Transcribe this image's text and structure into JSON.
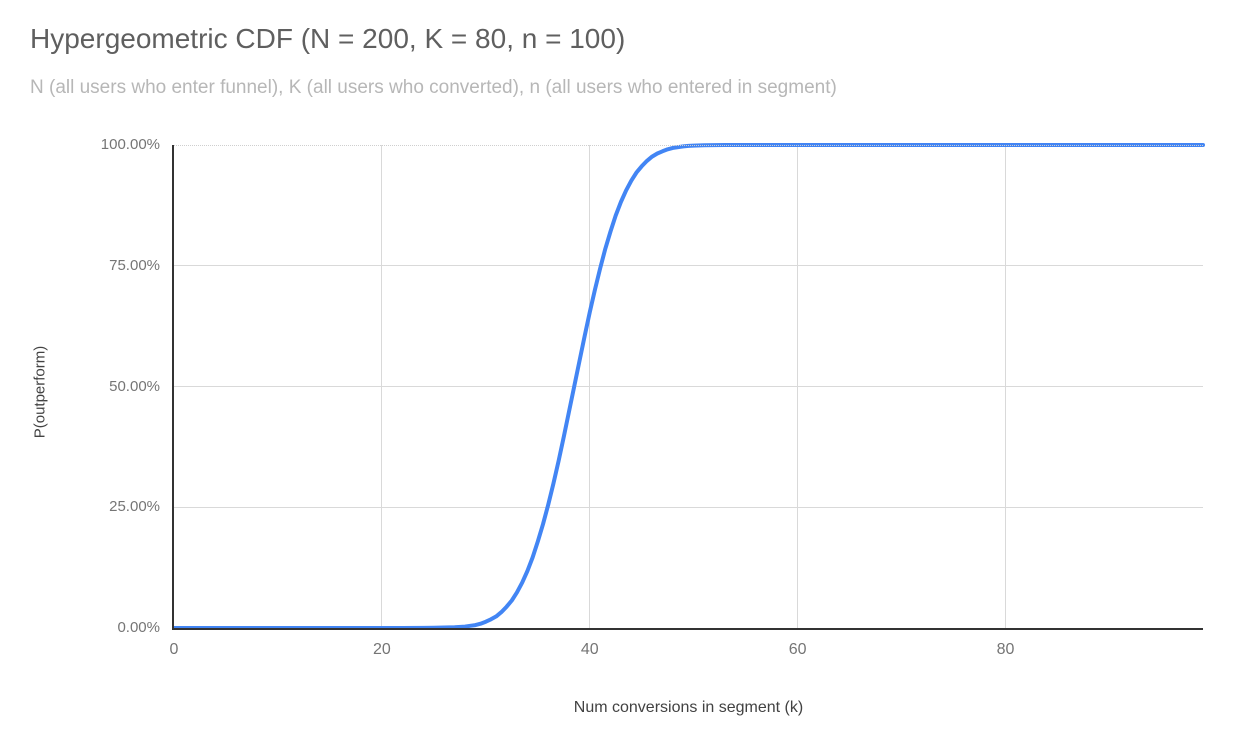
{
  "colors": {
    "series_line": "#4285f4",
    "grid_line": "#d9d9d9",
    "axis_line": "#333333",
    "top_gridline_dotted": "#cfcfcf",
    "title_text": "#5f5f5f",
    "subtitle_text": "#b7b7b7",
    "tick_text": "#757575",
    "axis_title_text": "#424242",
    "background": "#ffffff"
  },
  "params": {
    "N": 200,
    "K": 80,
    "n": 100
  },
  "chart_data": {
    "type": "line",
    "title": "Hypergeometric CDF (N = 200, K = 80, n = 100)",
    "subtitle": "N (all users who enter funnel), K (all users who converted), n (all users who entered in segment)",
    "xlabel": "Num conversions in segment (k)",
    "ylabel": "P(outperform)",
    "xlim": [
      0,
      99
    ],
    "ylim_percent": [
      0,
      100
    ],
    "x_ticks": [
      0,
      20,
      40,
      60,
      80
    ],
    "y_ticks": [
      {
        "value": 0,
        "label": "0.00%"
      },
      {
        "value": 25,
        "label": "25.00%"
      },
      {
        "value": 50,
        "label": "50.00%"
      },
      {
        "value": 75,
        "label": "75.00%"
      },
      {
        "value": 100,
        "label": "100.00%"
      }
    ],
    "grid": true,
    "legend": "none",
    "series": [
      {
        "name": "P(outperform)",
        "color": "#4285f4",
        "points_k_percent": [
          [
            0,
            0
          ],
          [
            5,
            0
          ],
          [
            10,
            0
          ],
          [
            15,
            0
          ],
          [
            20,
            0
          ],
          [
            22,
            0.01
          ],
          [
            24,
            0.03
          ],
          [
            25,
            0.05
          ],
          [
            26,
            0.1
          ],
          [
            27,
            0.15
          ],
          [
            28,
            0.3
          ],
          [
            28.5,
            0.45
          ],
          [
            29,
            0.6
          ],
          [
            29.5,
            0.9
          ],
          [
            30,
            1.3
          ],
          [
            30.5,
            1.8
          ],
          [
            31,
            2.4
          ],
          [
            31.5,
            3.3
          ],
          [
            32,
            4.4
          ],
          [
            32.5,
            5.7
          ],
          [
            33,
            7.4
          ],
          [
            33.5,
            9.4
          ],
          [
            34,
            11.8
          ],
          [
            34.5,
            14.6
          ],
          [
            35,
            17.9
          ],
          [
            35.5,
            21.5
          ],
          [
            36,
            25.5
          ],
          [
            36.5,
            29.9
          ],
          [
            37,
            34.6
          ],
          [
            37.5,
            39.6
          ],
          [
            38,
            44.8
          ],
          [
            38.5,
            50.0
          ],
          [
            39,
            55.2
          ],
          [
            39.5,
            60.4
          ],
          [
            40,
            65.4
          ],
          [
            40.5,
            70.1
          ],
          [
            41,
            74.5
          ],
          [
            41.5,
            78.5
          ],
          [
            42,
            82.1
          ],
          [
            42.5,
            85.4
          ],
          [
            43,
            88.2
          ],
          [
            43.5,
            90.6
          ],
          [
            44,
            92.6
          ],
          [
            44.5,
            94.3
          ],
          [
            45,
            95.6
          ],
          [
            45.5,
            96.7
          ],
          [
            46,
            97.6
          ],
          [
            46.5,
            98.25
          ],
          [
            47,
            98.7
          ],
          [
            47.5,
            99.1
          ],
          [
            48,
            99.4
          ],
          [
            48.5,
            99.57
          ],
          [
            49,
            99.71
          ],
          [
            49.5,
            99.81
          ],
          [
            50,
            99.88
          ],
          [
            51,
            99.95
          ],
          [
            52,
            99.98
          ],
          [
            53,
            99.99
          ],
          [
            54,
            100
          ],
          [
            56,
            100
          ],
          [
            58,
            100
          ],
          [
            60,
            100
          ],
          [
            65,
            100
          ],
          [
            70,
            100
          ],
          [
            75,
            100
          ],
          [
            80,
            100
          ],
          [
            85,
            100
          ],
          [
            90,
            100
          ],
          [
            95,
            100
          ],
          [
            99,
            100
          ]
        ]
      }
    ]
  }
}
